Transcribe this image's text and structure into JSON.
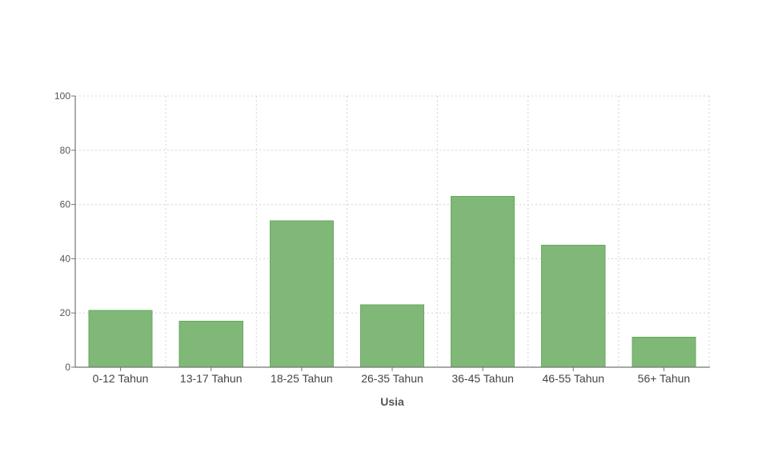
{
  "chart_data": {
    "type": "bar",
    "categories": [
      "0-12 Tahun",
      "13-17 Tahun",
      "18-25 Tahun",
      "26-35 Tahun",
      "36-45 Tahun",
      "46-55 Tahun",
      "56+ Tahun"
    ],
    "values": [
      21,
      17,
      54,
      23,
      63,
      45,
      11
    ],
    "xlabel": "Usia",
    "ylabel": "",
    "ylim": [
      0,
      100
    ],
    "yticks": [
      0,
      20,
      40,
      60,
      80,
      100
    ],
    "grid": true,
    "legend": "none",
    "bar_color": "#7fb877",
    "bar_edge_color": "#6aa862"
  }
}
